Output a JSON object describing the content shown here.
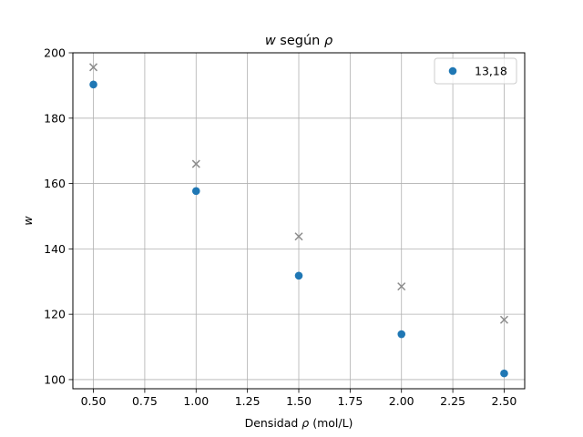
{
  "chart_data": {
    "type": "scatter",
    "title_parts": [
      {
        "text": "w",
        "italic": true
      },
      {
        "text": " según ",
        "italic": false
      },
      {
        "text": "ρ",
        "italic": true
      }
    ],
    "xlabel_parts": [
      {
        "text": "Densidad ",
        "italic": false
      },
      {
        "text": "ρ",
        "italic": true
      },
      {
        "text": " (mol/L)",
        "italic": false
      }
    ],
    "ylabel_parts": [
      {
        "text": "w",
        "italic": true
      }
    ],
    "xlim": [
      0.4,
      2.6
    ],
    "ylim": [
      97.2,
      200
    ],
    "x_ticks": [
      0.5,
      0.75,
      1.0,
      1.25,
      1.5,
      1.75,
      2.0,
      2.25,
      2.5
    ],
    "x_tick_labels": [
      "0.50",
      "0.75",
      "1.00",
      "1.25",
      "1.50",
      "1.75",
      "2.00",
      "2.25",
      "2.50"
    ],
    "y_ticks": [
      100,
      120,
      140,
      160,
      180,
      200
    ],
    "y_tick_labels": [
      "100",
      "120",
      "140",
      "160",
      "180",
      "200"
    ],
    "grid": true,
    "legend_position": "top-right",
    "series": [
      {
        "name": "13,18",
        "marker": "circle",
        "color": "#1f77b4",
        "in_legend": true,
        "x": [
          0.5,
          1.0,
          1.5,
          2.0,
          2.5
        ],
        "y": [
          190.3,
          157.7,
          131.8,
          113.9,
          101.9
        ]
      },
      {
        "marker": "x",
        "color": "#8c8c8c",
        "in_legend": false,
        "x": [
          0.5,
          1.0,
          1.5,
          2.0,
          2.5
        ],
        "y": [
          195.6,
          166.0,
          143.8,
          128.5,
          118.3
        ]
      }
    ]
  }
}
